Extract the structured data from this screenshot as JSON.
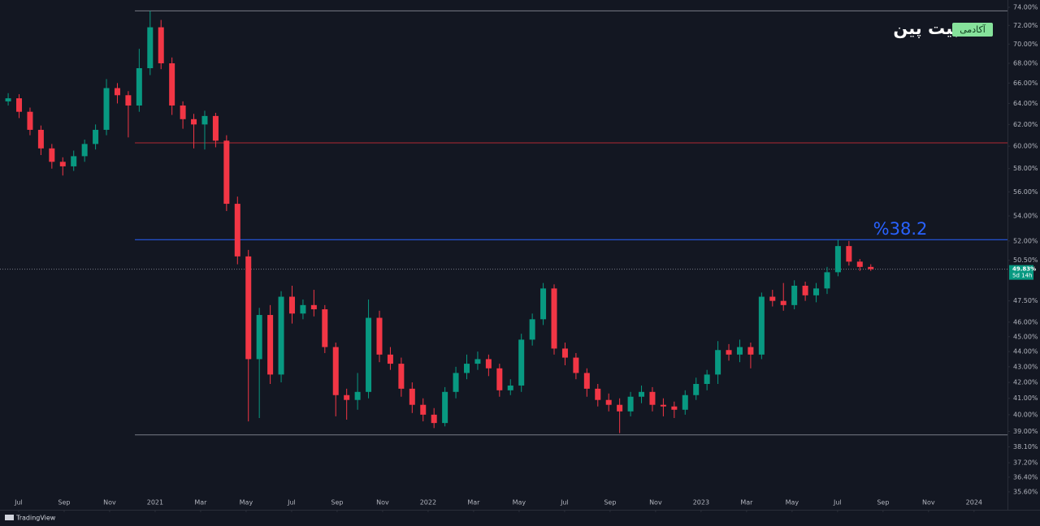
{
  "chart_data": {
    "type": "candlestick",
    "x": [
      5.54,
      6.02,
      6.5,
      6.98,
      7.46,
      7.94,
      8.42,
      8.9,
      9.38,
      9.86,
      10.34,
      10.82,
      11.3,
      11.78,
      12.26,
      12.74,
      13.22,
      13.7,
      14.18,
      14.66,
      15.14,
      15.62,
      16.1,
      16.58,
      17.06,
      17.54,
      18.02,
      18.5,
      18.98,
      19.46,
      19.94,
      20.42,
      20.9,
      21.38,
      21.86,
      22.34,
      22.82,
      23.3,
      23.78,
      24.26,
      24.74,
      25.22,
      25.7,
      26.18,
      26.66,
      27.14,
      27.62,
      28.1,
      28.58,
      29.06,
      29.54,
      30.02,
      30.5,
      30.98,
      31.46,
      31.94,
      32.42,
      32.9,
      33.38,
      33.86,
      34.34,
      34.82,
      35.3,
      35.78,
      36.26,
      36.74,
      37.22,
      37.7,
      38.18,
      38.66,
      39.14,
      39.62,
      40.1,
      40.58,
      41.06,
      41.54,
      42.02,
      42.5,
      42.98,
      43.46
    ],
    "open": [
      64.2,
      64.5,
      63.2,
      61.5,
      59.8,
      58.6,
      58.2,
      59.1,
      60.2,
      61.5,
      65.5,
      64.8,
      63.8,
      67.5,
      71.8,
      68.0,
      63.8,
      62.5,
      62.0,
      62.8,
      60.5,
      55.0,
      50.8,
      43.5,
      46.5,
      42.5,
      47.8,
      46.6,
      47.2,
      46.9,
      44.3,
      41.2,
      40.9,
      41.4,
      46.3,
      43.8,
      43.2,
      41.6,
      40.6,
      40.0,
      39.5,
      41.4,
      42.6,
      43.2,
      43.5,
      42.9,
      41.5,
      41.8,
      44.8,
      46.2,
      48.4,
      44.2,
      43.6,
      42.6,
      41.6,
      40.9,
      40.6,
      40.2,
      41.1,
      41.4,
      40.6,
      40.5,
      40.3,
      41.2,
      41.9,
      42.5,
      44.1,
      43.8,
      44.3,
      43.8,
      47.8,
      47.5,
      47.2,
      48.6,
      47.9,
      48.4,
      49.6,
      51.6,
      50.4,
      50.0
    ],
    "high": [
      65.0,
      64.9,
      63.6,
      61.9,
      60.2,
      59.0,
      59.6,
      60.6,
      62.0,
      66.4,
      66.0,
      65.2,
      69.5,
      73.6,
      72.6,
      68.6,
      64.2,
      63.0,
      63.3,
      63.1,
      61.0,
      55.6,
      51.3,
      47.0,
      47.2,
      48.2,
      48.6,
      47.6,
      48.3,
      47.2,
      44.6,
      41.6,
      42.6,
      47.6,
      46.8,
      44.3,
      43.6,
      42.0,
      41.0,
      40.4,
      41.7,
      43.0,
      43.8,
      44.0,
      43.8,
      43.2,
      42.2,
      45.2,
      46.6,
      48.8,
      48.7,
      44.6,
      43.9,
      42.9,
      41.9,
      41.3,
      41.0,
      41.4,
      41.8,
      41.7,
      41.0,
      40.8,
      41.5,
      42.3,
      42.8,
      44.7,
      44.5,
      44.8,
      44.6,
      48.1,
      48.3,
      48.8,
      49.0,
      48.9,
      48.8,
      50.0,
      52.1,
      52.0,
      50.6,
      50.2
    ],
    "low": [
      63.8,
      62.6,
      61.0,
      59.2,
      58.0,
      57.4,
      57.8,
      58.6,
      59.7,
      61.0,
      64.0,
      60.8,
      63.2,
      66.8,
      67.4,
      62.9,
      61.6,
      59.8,
      59.7,
      59.9,
      54.4,
      50.2,
      39.6,
      39.8,
      41.9,
      42.0,
      45.9,
      46.2,
      46.4,
      43.9,
      39.9,
      39.7,
      40.3,
      41.0,
      43.3,
      42.8,
      41.1,
      40.1,
      39.6,
      39.2,
      39.3,
      41.0,
      42.2,
      42.8,
      42.4,
      41.1,
      41.2,
      41.4,
      44.4,
      45.8,
      43.8,
      43.1,
      42.2,
      41.1,
      40.5,
      40.2,
      38.9,
      39.9,
      40.7,
      40.2,
      39.9,
      39.8,
      40.0,
      40.9,
      41.5,
      41.9,
      43.4,
      43.3,
      42.9,
      43.5,
      47.1,
      46.8,
      46.9,
      47.5,
      47.4,
      48.0,
      49.3,
      50.1,
      49.7,
      49.7
    ],
    "close": [
      64.5,
      63.2,
      61.5,
      59.8,
      58.6,
      58.2,
      59.1,
      60.2,
      61.5,
      65.5,
      64.8,
      63.8,
      67.5,
      71.8,
      68.0,
      63.8,
      62.5,
      62.0,
      62.8,
      60.5,
      55.0,
      50.8,
      43.5,
      46.5,
      42.5,
      47.8,
      46.6,
      47.2,
      46.9,
      44.3,
      41.2,
      40.9,
      41.4,
      46.3,
      43.8,
      43.2,
      41.6,
      40.6,
      40.0,
      39.5,
      41.4,
      42.6,
      43.2,
      43.5,
      42.9,
      41.5,
      41.8,
      44.8,
      46.2,
      48.4,
      44.2,
      43.6,
      42.6,
      41.6,
      40.9,
      40.6,
      40.2,
      41.1,
      41.4,
      40.6,
      40.5,
      40.3,
      41.2,
      41.9,
      42.5,
      44.1,
      43.8,
      44.3,
      43.8,
      47.8,
      47.5,
      47.2,
      48.6,
      47.9,
      48.4,
      49.6,
      51.6,
      50.4,
      50.0,
      49.83
    ],
    "up_color": "#089981",
    "down_color": "#f23645",
    "log_scale": true,
    "xlim": [
      5.18,
      49.47
    ],
    "xticks": [
      {
        "value": 6,
        "label": "Jul"
      },
      {
        "value": 8,
        "label": "Sep"
      },
      {
        "value": 10,
        "label": "Nov"
      },
      {
        "value": 12,
        "label": "2021"
      },
      {
        "value": 14,
        "label": "Mar"
      },
      {
        "value": 16,
        "label": "May"
      },
      {
        "value": 18,
        "label": "Jul"
      },
      {
        "value": 20,
        "label": "Sep"
      },
      {
        "value": 22,
        "label": "Nov"
      },
      {
        "value": 24,
        "label": "2022"
      },
      {
        "value": 26,
        "label": "Mar"
      },
      {
        "value": 28,
        "label": "May"
      },
      {
        "value": 30,
        "label": "Jul"
      },
      {
        "value": 32,
        "label": "Sep"
      },
      {
        "value": 34,
        "label": "Nov"
      },
      {
        "value": 36,
        "label": "2023"
      },
      {
        "value": 38,
        "label": "Mar"
      },
      {
        "value": 40,
        "label": "May"
      },
      {
        "value": 42,
        "label": "Jul"
      },
      {
        "value": 44,
        "label": "Sep"
      },
      {
        "value": 46,
        "label": "Nov"
      },
      {
        "value": 48,
        "label": "2024"
      }
    ],
    "ylim": [
      34.65,
      74.82
    ],
    "yticks": [
      {
        "value": 74,
        "label": "74.00%"
      },
      {
        "value": 72,
        "label": "72.00%"
      },
      {
        "value": 70,
        "label": "70.00%"
      },
      {
        "value": 68,
        "label": "68.00%"
      },
      {
        "value": 66,
        "label": "66.00%"
      },
      {
        "value": 64,
        "label": "64.00%"
      },
      {
        "value": 62,
        "label": "62.00%"
      },
      {
        "value": 60,
        "label": "60.00%"
      },
      {
        "value": 58,
        "label": "58.00%"
      },
      {
        "value": 56,
        "label": "56.00%"
      },
      {
        "value": 54,
        "label": "54.00%"
      },
      {
        "value": 52,
        "label": "52.00%"
      },
      {
        "value": 50.5,
        "label": "50.50%"
      },
      {
        "value": 47.5,
        "label": "47.50%"
      },
      {
        "value": 46,
        "label": "46.00%"
      },
      {
        "value": 45,
        "label": "45.00%"
      },
      {
        "value": 44,
        "label": "44.00%"
      },
      {
        "value": 43,
        "label": "43.00%"
      },
      {
        "value": 42,
        "label": "42.00%"
      },
      {
        "value": 41,
        "label": "41.00%"
      },
      {
        "value": 40,
        "label": "40.00%"
      },
      {
        "value": 39,
        "label": "39.00%"
      },
      {
        "value": 38.1,
        "label": "38.10%"
      },
      {
        "value": 37.2,
        "label": "37.20%"
      },
      {
        "value": 36.4,
        "label": "36.40%"
      },
      {
        "value": 35.6,
        "label": "35.60%"
      }
    ],
    "levels": [
      {
        "value": 73.6,
        "start": 11.11,
        "color": "#787b86"
      },
      {
        "value": 60.3,
        "start": 11.11,
        "color": "#b22833"
      },
      {
        "value": 52.1,
        "start": 11.11,
        "color": "#2962ff"
      },
      {
        "value": 38.8,
        "start": 11.11,
        "color": "#787b86"
      }
    ],
    "annotation": "%38.2",
    "last_price": {
      "value": 49.83,
      "label": "49.83%"
    },
    "countdown": "5d 14h",
    "logo": {
      "name": "بیت پین",
      "badge": "آکادمی"
    },
    "footer": "TradingView"
  }
}
